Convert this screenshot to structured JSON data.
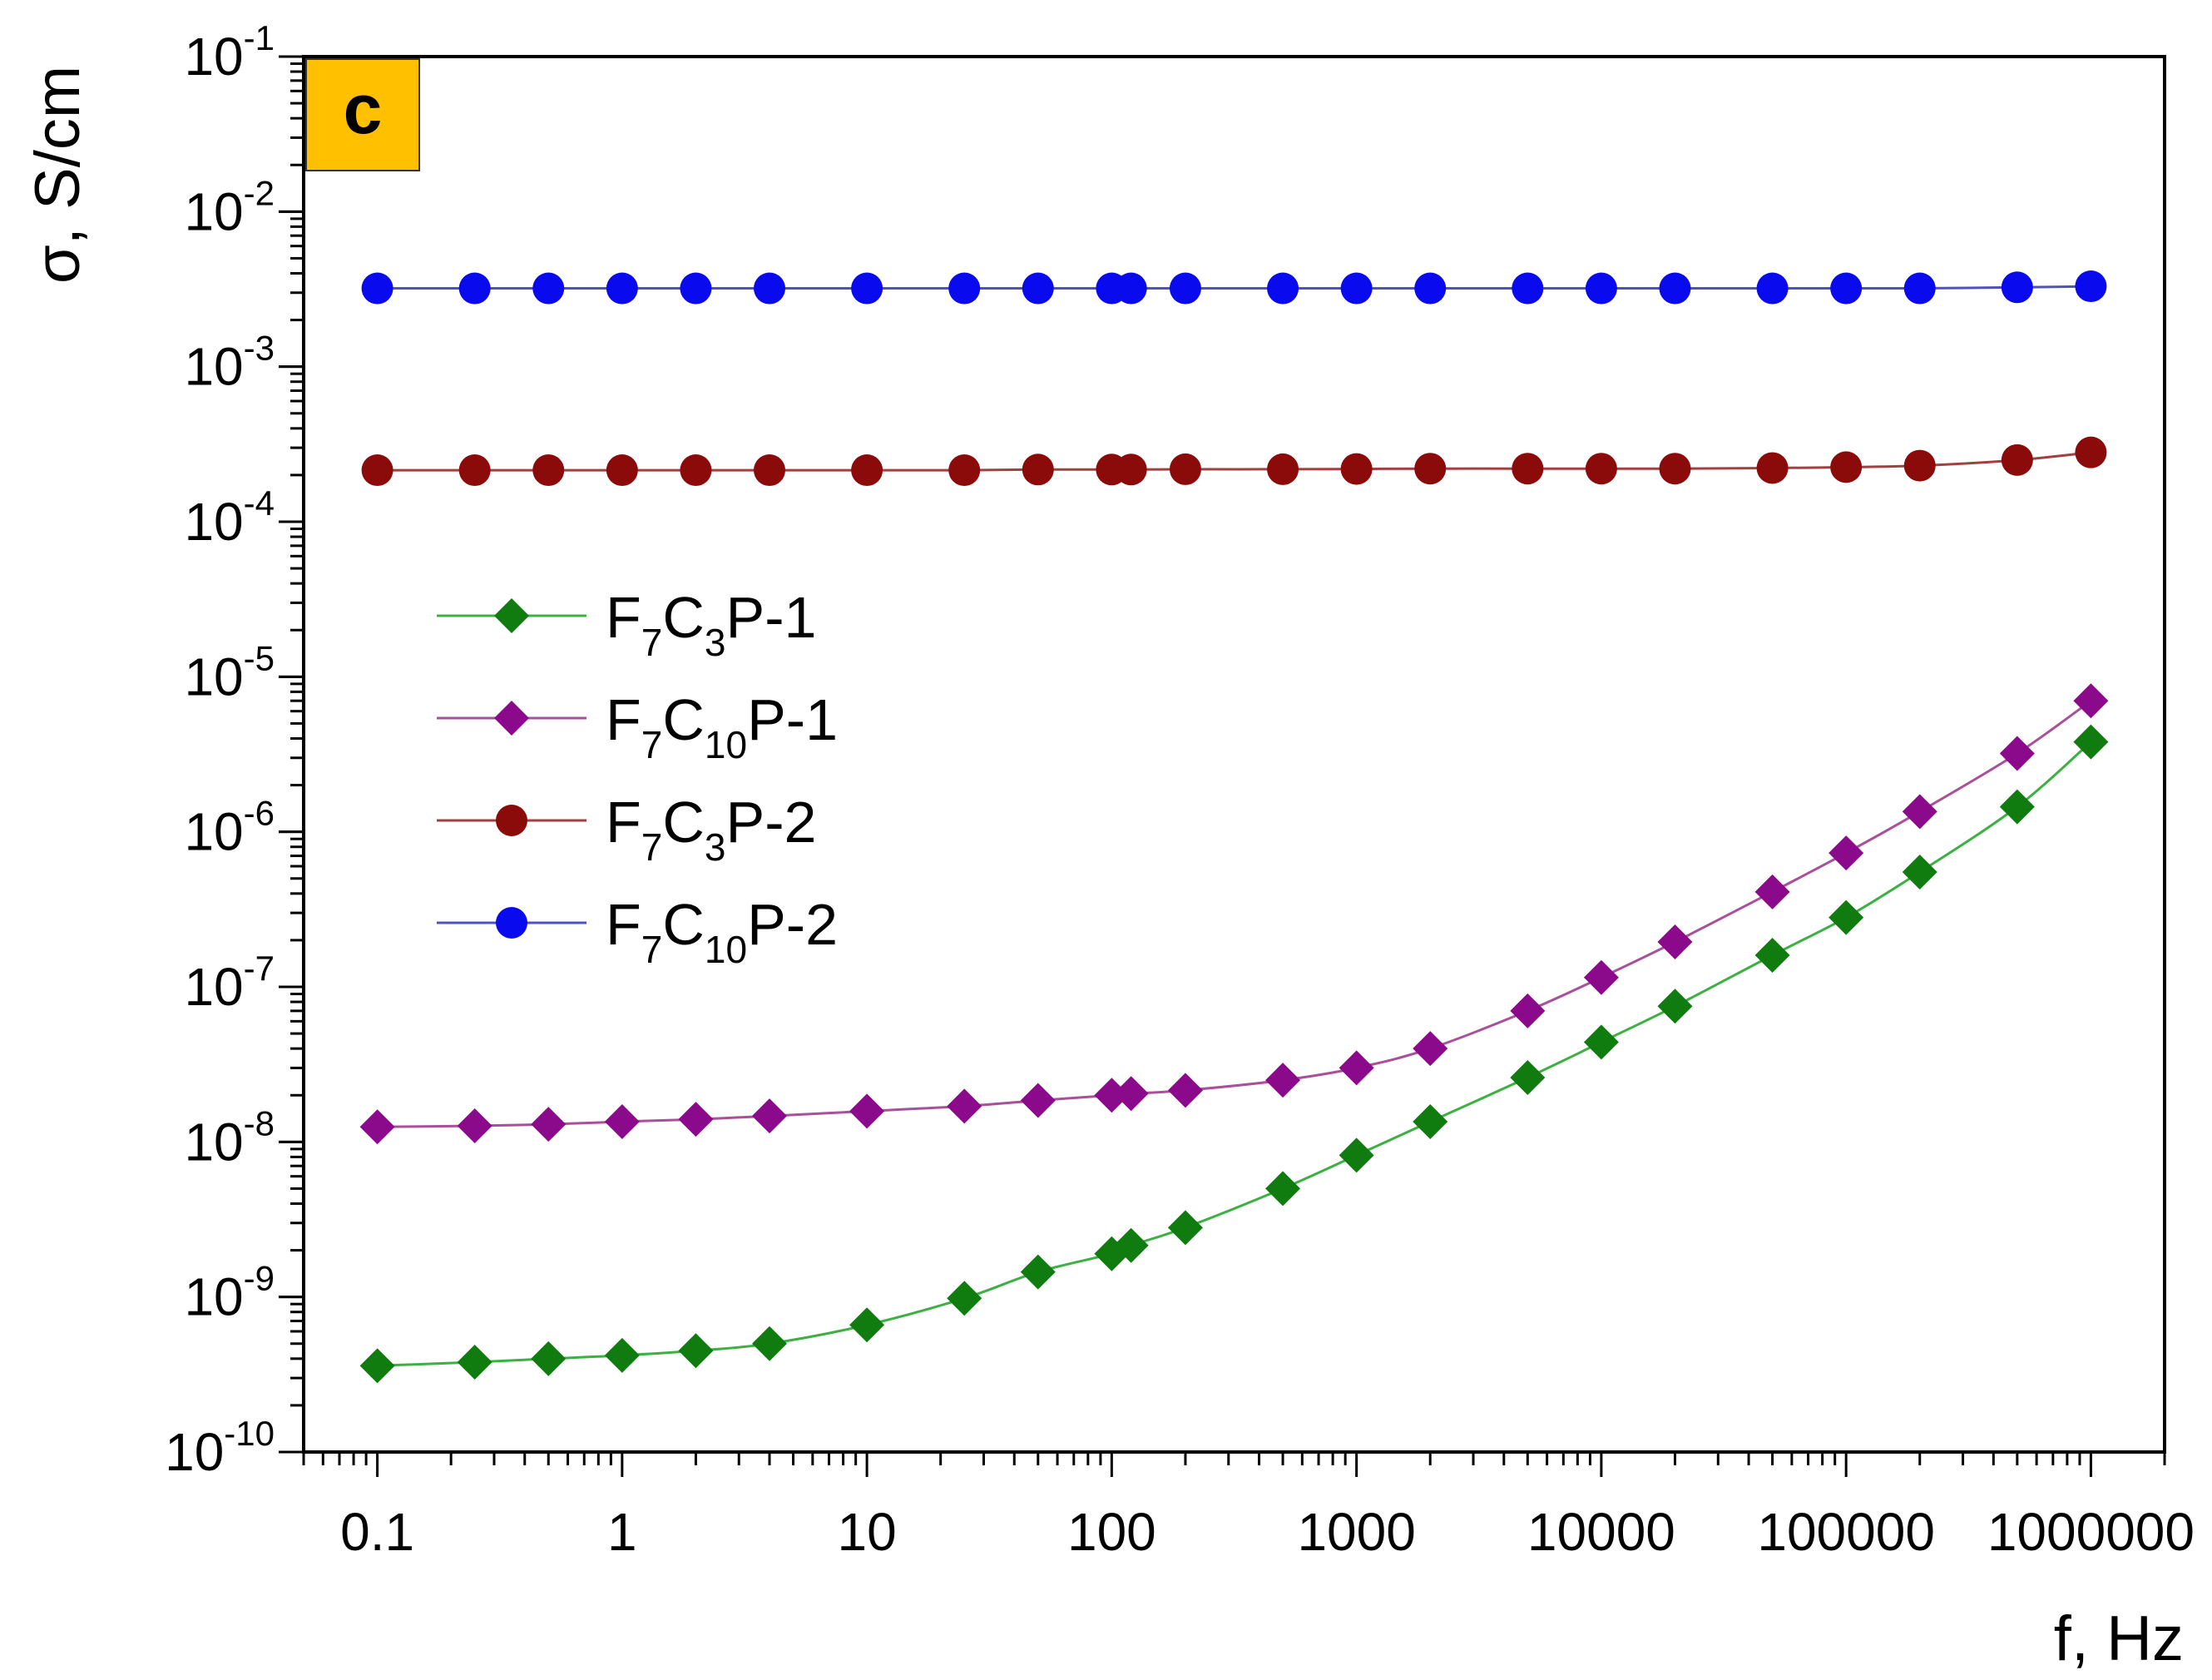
{
  "chart_data": {
    "type": "line",
    "panel_label": "c",
    "panel_label_color": "#FFC000",
    "xscale": "log",
    "yscale": "log",
    "xlim": [
      0.05,
      2000000
    ],
    "ylim": [
      1e-10,
      0.1
    ],
    "xlabel": "f, Hz",
    "ylabel": "σ, S/cm",
    "x_ticks": [
      0.1,
      1,
      10,
      100,
      1000,
      10000,
      100000,
      1000000
    ],
    "x_tick_labels": [
      "0.1",
      "1",
      "10",
      "100",
      "1000",
      "10000",
      "100000",
      "1000000"
    ],
    "y_ticks": [
      {
        "value": 1e-10,
        "base": "10",
        "exp": "-10"
      },
      {
        "value": 1e-09,
        "base": "10",
        "exp": "-9"
      },
      {
        "value": 1e-08,
        "base": "10",
        "exp": "-8"
      },
      {
        "value": 1e-07,
        "base": "10",
        "exp": "-7"
      },
      {
        "value": 1e-06,
        "base": "10",
        "exp": "-6"
      },
      {
        "value": 1e-05,
        "base": "10",
        "exp": "-5"
      },
      {
        "value": 0.0001,
        "base": "10",
        "exp": "-4"
      },
      {
        "value": 0.001,
        "base": "10",
        "exp": "-3"
      },
      {
        "value": 0.01,
        "base": "10",
        "exp": "-2"
      },
      {
        "value": 0.1,
        "base": "10",
        "exp": "-1"
      }
    ],
    "x": [
      0.1,
      0.25,
      0.5,
      1,
      2,
      4,
      10,
      25,
      50,
      100,
      120,
      200,
      500,
      1000,
      2000,
      5000,
      10000,
      20000,
      50000,
      100000,
      200000,
      500000,
      1000000
    ],
    "series": [
      {
        "name": "F7C3P-1",
        "label_parts": [
          [
            "F",
            ""
          ],
          [
            "7",
            "sub"
          ],
          [
            "C",
            ""
          ],
          [
            "3",
            "sub"
          ],
          [
            "P-1",
            ""
          ]
        ],
        "marker": "diamond",
        "marker_color": "#107C10",
        "line_color": "#3CB043",
        "values": [
          3.6e-10,
          3.8e-10,
          4e-10,
          4.2e-10,
          4.5e-10,
          5e-10,
          6.6e-10,
          9.8e-10,
          1.45e-09,
          1.9e-09,
          2.15e-09,
          2.8e-09,
          5e-09,
          8.2e-09,
          1.35e-08,
          2.6e-08,
          4.4e-08,
          7.5e-08,
          1.6e-07,
          2.8e-07,
          5.5e-07,
          1.45e-06,
          3.8e-06
        ]
      },
      {
        "name": "F7C10P-1",
        "label_parts": [
          [
            "F",
            ""
          ],
          [
            "7",
            "sub"
          ],
          [
            "C",
            ""
          ],
          [
            "10",
            "sub"
          ],
          [
            "P-1",
            ""
          ]
        ],
        "marker": "diamond",
        "marker_color": "#8B0A8B",
        "line_color": "#A8509A",
        "values": [
          1.25e-08,
          1.27e-08,
          1.3e-08,
          1.35e-08,
          1.4e-08,
          1.47e-08,
          1.58e-08,
          1.7e-08,
          1.85e-08,
          2e-08,
          2.05e-08,
          2.15e-08,
          2.5e-08,
          3e-08,
          4e-08,
          7e-08,
          1.15e-07,
          1.95e-07,
          4.1e-07,
          7.3e-07,
          1.35e-06,
          3.2e-06,
          7e-06
        ]
      },
      {
        "name": "F7C3P-2",
        "label_parts": [
          [
            "F",
            ""
          ],
          [
            "7",
            "sub"
          ],
          [
            "C",
            ""
          ],
          [
            "3",
            "sub"
          ],
          [
            "P-2",
            ""
          ]
        ],
        "marker": "circle",
        "marker_color": "#8B0A0A",
        "line_color": "#A04040",
        "values": [
          0.000215,
          0.000215,
          0.000215,
          0.000215,
          0.000215,
          0.000215,
          0.000215,
          0.000215,
          0.000217,
          0.000217,
          0.000217,
          0.000218,
          0.000218,
          0.000219,
          0.00022,
          0.00022,
          0.00022,
          0.00022,
          0.000222,
          0.000225,
          0.00023,
          0.00025,
          0.00028
        ]
      },
      {
        "name": "F7C10P-2",
        "label_parts": [
          [
            "F",
            ""
          ],
          [
            "7",
            "sub"
          ],
          [
            "C",
            ""
          ],
          [
            "10",
            "sub"
          ],
          [
            "P-2",
            ""
          ]
        ],
        "marker": "circle",
        "marker_color": "#0A0AEE",
        "line_color": "#5050C0",
        "values": [
          0.0032,
          0.0032,
          0.0032,
          0.0032,
          0.0032,
          0.0032,
          0.0032,
          0.0032,
          0.0032,
          0.0032,
          0.0032,
          0.0032,
          0.0032,
          0.0032,
          0.0032,
          0.0032,
          0.0032,
          0.0032,
          0.0032,
          0.0032,
          0.0032,
          0.00325,
          0.0033
        ]
      }
    ],
    "legend_position": "middle-left",
    "grid": false
  }
}
